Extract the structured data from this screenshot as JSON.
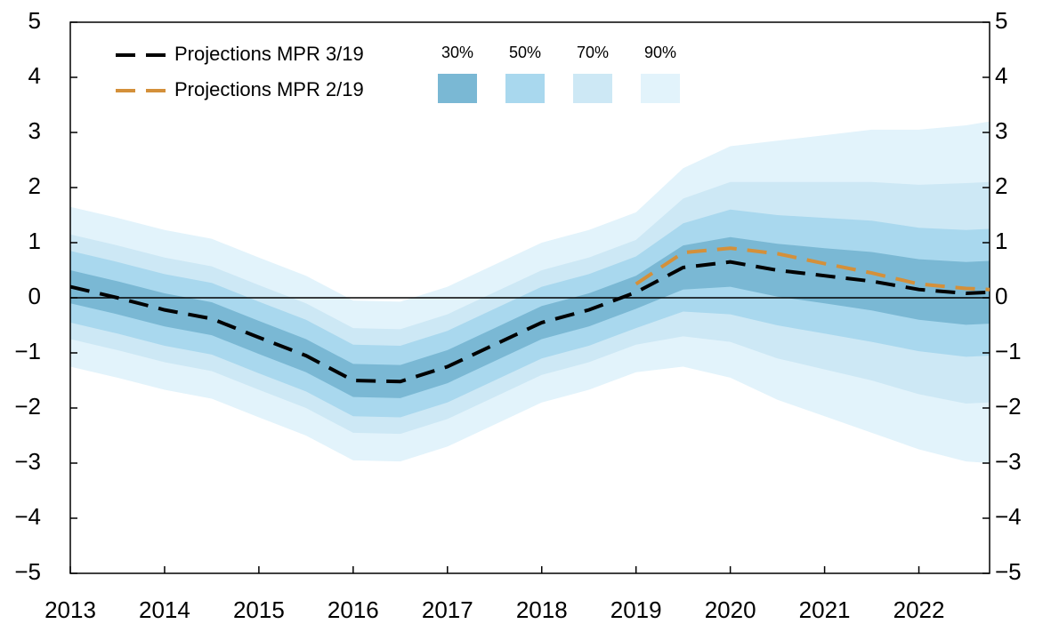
{
  "chart_data": {
    "type": "fan",
    "x": [
      2013,
      2013.5,
      2014,
      2014.5,
      2015,
      2015.5,
      2016,
      2016.5,
      2017,
      2017.5,
      2018,
      2018.5,
      2019,
      2019.5,
      2020,
      2020.5,
      2021,
      2021.5,
      2022,
      2022.5,
      2022.75
    ],
    "xlim": [
      2013,
      2022.75
    ],
    "xticks": [
      2013,
      2014,
      2015,
      2016,
      2017,
      2018,
      2019,
      2020,
      2021,
      2022
    ],
    "ylim": [
      -5,
      5
    ],
    "yticks": [
      {
        "value": -5,
        "label": "−5"
      },
      {
        "value": -4,
        "label": "−4"
      },
      {
        "value": -3,
        "label": "−3"
      },
      {
        "value": -2,
        "label": "−2"
      },
      {
        "value": -1,
        "label": "−1"
      },
      0,
      1,
      2,
      3,
      4,
      5
    ],
    "series": [
      {
        "name": "Projections MPR 3/19",
        "color": "#000000",
        "values": [
          0.2,
          0.0,
          -0.22,
          -0.38,
          -0.72,
          -1.05,
          -1.5,
          -1.52,
          -1.25,
          -0.85,
          -0.45,
          -0.22,
          0.1,
          0.55,
          0.65,
          0.5,
          0.4,
          0.3,
          0.15,
          0.08,
          0.1
        ]
      },
      {
        "name": "Projections MPR 2/19",
        "color": "#d4903a",
        "values": [
          null,
          null,
          null,
          null,
          null,
          null,
          null,
          null,
          null,
          null,
          null,
          null,
          0.25,
          0.82,
          0.9,
          0.8,
          0.62,
          0.45,
          0.25,
          0.17,
          0.15
        ]
      }
    ],
    "fan": [
      {
        "name": "30%",
        "color": "#7ab8d4",
        "lower": [
          -0.1,
          -0.3,
          -0.52,
          -0.68,
          -1.02,
          -1.35,
          -1.8,
          -1.82,
          -1.55,
          -1.15,
          -0.75,
          -0.52,
          -0.2,
          0.15,
          0.2,
          0.02,
          -0.1,
          -0.23,
          -0.4,
          -0.49,
          -0.47
        ],
        "upper": [
          0.5,
          0.3,
          0.08,
          -0.08,
          -0.42,
          -0.75,
          -1.2,
          -1.22,
          -0.95,
          -0.55,
          -0.15,
          0.08,
          0.4,
          0.95,
          1.1,
          0.98,
          0.9,
          0.83,
          0.7,
          0.65,
          0.67
        ]
      },
      {
        "name": "50%",
        "color": "#a9d8ee",
        "lower": [
          -0.45,
          -0.65,
          -0.87,
          -1.03,
          -1.37,
          -1.7,
          -2.15,
          -2.17,
          -1.9,
          -1.5,
          -1.1,
          -0.87,
          -0.55,
          -0.25,
          -0.3,
          -0.5,
          -0.65,
          -0.8,
          -0.97,
          -1.07,
          -1.05
        ],
        "upper": [
          0.85,
          0.65,
          0.43,
          0.27,
          -0.07,
          -0.4,
          -0.85,
          -0.87,
          -0.6,
          -0.2,
          0.2,
          0.43,
          0.75,
          1.35,
          1.6,
          1.5,
          1.45,
          1.4,
          1.27,
          1.23,
          1.25
        ]
      },
      {
        "name": "70%",
        "color": "#cde8f5",
        "lower": [
          -0.75,
          -0.95,
          -1.17,
          -1.33,
          -1.67,
          -2.0,
          -2.45,
          -2.47,
          -2.2,
          -1.8,
          -1.4,
          -1.17,
          -0.85,
          -0.7,
          -0.8,
          -1.1,
          -1.3,
          -1.5,
          -1.75,
          -1.92,
          -1.9
        ],
        "upper": [
          1.15,
          0.95,
          0.73,
          0.57,
          0.23,
          -0.1,
          -0.55,
          -0.57,
          -0.3,
          0.1,
          0.5,
          0.73,
          1.05,
          1.8,
          2.1,
          2.1,
          2.1,
          2.1,
          2.05,
          2.08,
          2.1
        ]
      },
      {
        "name": "90%",
        "color": "#e2f3fb",
        "lower": [
          -1.25,
          -1.45,
          -1.67,
          -1.83,
          -2.17,
          -2.5,
          -2.95,
          -2.97,
          -2.7,
          -2.3,
          -1.9,
          -1.67,
          -1.35,
          -1.25,
          -1.45,
          -1.85,
          -2.15,
          -2.45,
          -2.75,
          -2.97,
          -3.0
        ],
        "upper": [
          1.65,
          1.45,
          1.23,
          1.07,
          0.73,
          0.4,
          -0.05,
          -0.07,
          0.2,
          0.6,
          1.0,
          1.23,
          1.55,
          2.35,
          2.75,
          2.85,
          2.95,
          3.05,
          3.05,
          3.13,
          3.2
        ]
      }
    ]
  }
}
